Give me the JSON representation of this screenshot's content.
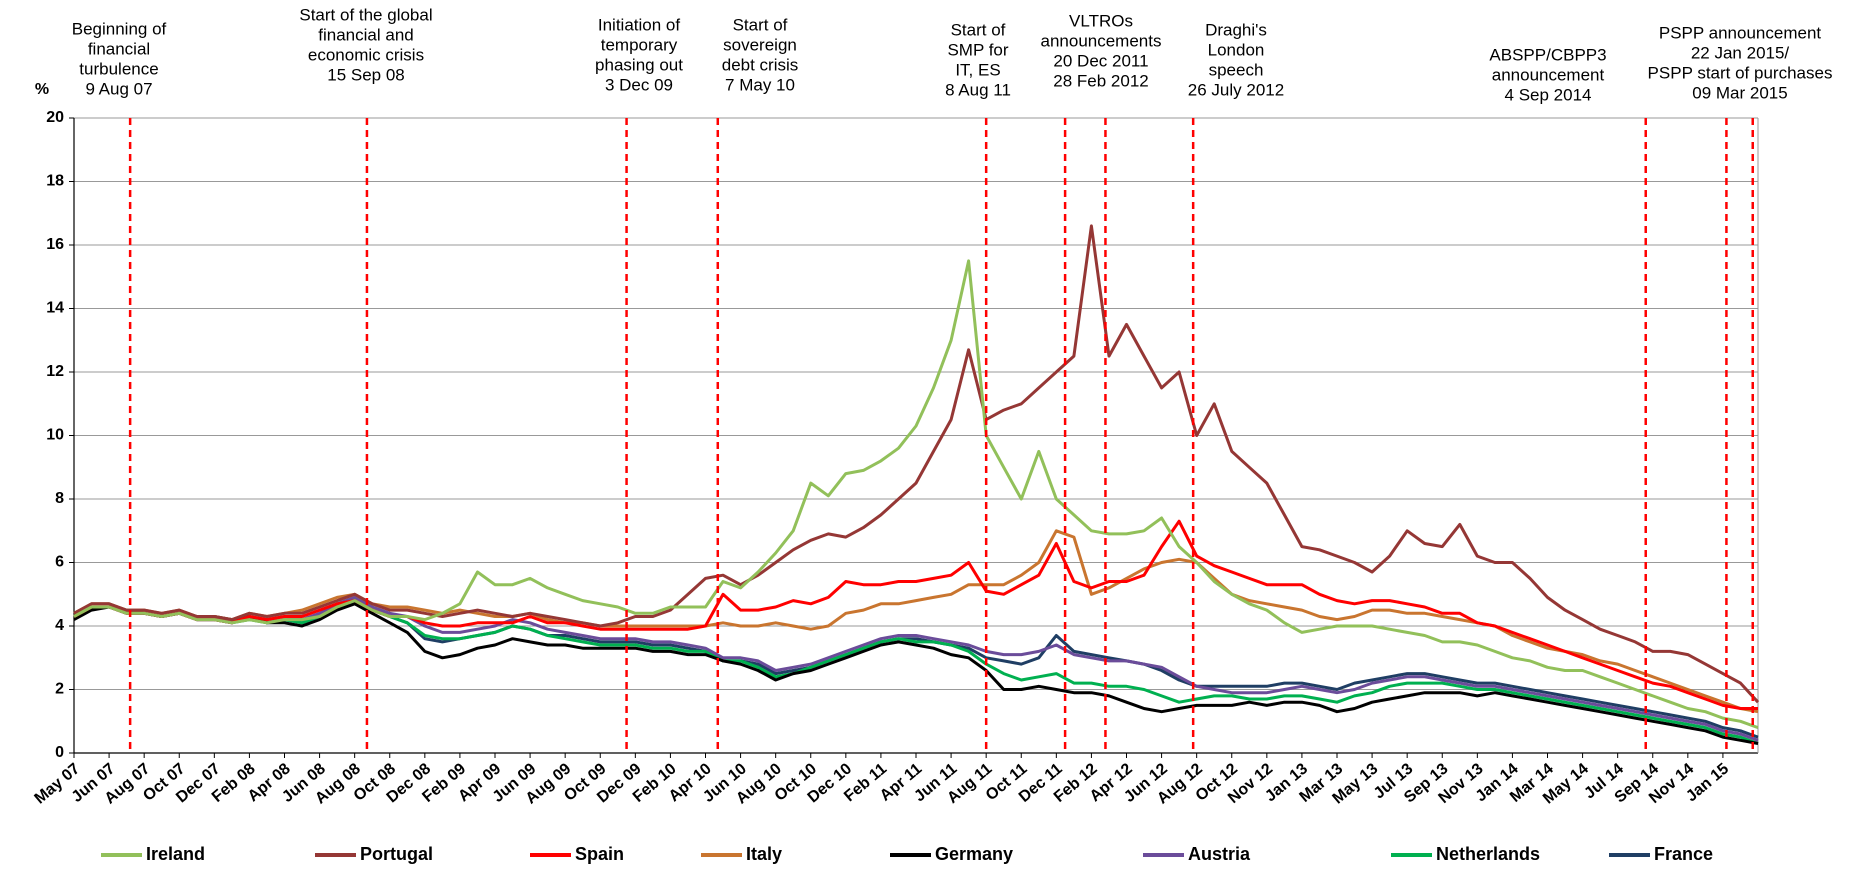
{
  "chart_data": {
    "type": "line",
    "y_label": "%",
    "categories": [
      "May 07",
      null,
      "Jun 07",
      null,
      "Aug 07",
      null,
      "Oct 07",
      null,
      "Dec 07",
      null,
      "Feb 08",
      null,
      "Apr 08",
      null,
      "Jun 08",
      null,
      "Aug 08",
      null,
      "Oct 08",
      null,
      "Dec 08",
      null,
      "Feb 09",
      null,
      "Apr 09",
      null,
      "Jun 09",
      null,
      "Aug 09",
      null,
      "Oct 09",
      null,
      "Dec 09",
      null,
      "Feb 10",
      null,
      "Apr 10",
      null,
      "Jun 10",
      null,
      "Aug 10",
      null,
      "Oct 10",
      null,
      "Dec 10",
      null,
      "Feb 11",
      null,
      "Apr 11",
      null,
      "Jun 11",
      null,
      "Aug 11",
      null,
      "Oct 11",
      null,
      "Dec 11",
      null,
      "Feb 12",
      null,
      "Apr 12",
      null,
      "Jun 12",
      null,
      "Aug 12",
      null,
      "Oct 12",
      null,
      "Nov 12",
      null,
      "Jan 13",
      null,
      "Mar 13",
      null,
      "May 13",
      null,
      "Jul 13",
      null,
      "Sep 13",
      null,
      "Nov 13",
      null,
      "Jan 14",
      null,
      "Mar 14",
      null,
      "May 14",
      null,
      "Jul 14",
      null,
      "Sep 14",
      null,
      "Nov 14",
      null,
      "Jan 15",
      null,
      null
    ],
    "ylim": [
      0,
      20
    ],
    "yticks": [
      0,
      2,
      4,
      6,
      8,
      10,
      12,
      14,
      16,
      18,
      20
    ],
    "grid": true,
    "series": [
      {
        "name": "Ireland",
        "color": "#92c05a",
        "values": [
          4.3,
          4.6,
          4.6,
          4.4,
          4.4,
          4.3,
          4.4,
          4.2,
          4.2,
          4.1,
          4.2,
          4.1,
          4.2,
          4.2,
          4.3,
          4.6,
          4.8,
          4.5,
          4.3,
          4.3,
          4.2,
          4.4,
          4.7,
          5.7,
          5.3,
          5.3,
          5.5,
          5.2,
          5.0,
          4.8,
          4.7,
          4.6,
          4.4,
          4.4,
          4.6,
          4.6,
          4.6,
          5.4,
          5.2,
          5.7,
          6.3,
          7.0,
          8.5,
          8.1,
          8.8,
          8.9,
          9.2,
          9.6,
          10.3,
          11.5,
          13.0,
          15.5,
          10.0,
          9.0,
          8.0,
          9.5,
          8.0,
          7.5,
          7.0,
          6.9,
          6.9,
          7.0,
          7.4,
          6.5,
          6.0,
          5.4,
          5.0,
          4.7,
          4.5,
          4.1,
          3.8,
          3.9,
          4.0,
          4.0,
          4.0,
          3.9,
          3.8,
          3.7,
          3.5,
          3.5,
          3.4,
          3.2,
          3.0,
          2.9,
          2.7,
          2.6,
          2.6,
          2.4,
          2.2,
          2.0,
          1.8,
          1.6,
          1.4,
          1.3,
          1.1,
          1.0,
          0.8
        ]
      },
      {
        "name": "Portugal",
        "color": "#953735",
        "values": [
          4.4,
          4.7,
          4.7,
          4.5,
          4.5,
          4.4,
          4.5,
          4.3,
          4.3,
          4.2,
          4.4,
          4.3,
          4.4,
          4.4,
          4.6,
          4.8,
          5.0,
          4.7,
          4.5,
          4.5,
          4.4,
          4.3,
          4.4,
          4.5,
          4.4,
          4.3,
          4.4,
          4.3,
          4.2,
          4.1,
          4.0,
          4.1,
          4.3,
          4.3,
          4.5,
          5.0,
          5.5,
          5.6,
          5.3,
          5.6,
          6.0,
          6.4,
          6.7,
          6.9,
          6.8,
          7.1,
          7.5,
          8.0,
          8.5,
          9.5,
          10.5,
          12.7,
          10.5,
          10.8,
          11.0,
          11.5,
          12.0,
          12.5,
          16.6,
          12.5,
          13.5,
          12.5,
          11.5,
          12.0,
          10.0,
          11.0,
          9.5,
          9.0,
          8.5,
          7.5,
          6.5,
          6.4,
          6.2,
          6.0,
          5.7,
          6.2,
          7.0,
          6.6,
          6.5,
          7.2,
          6.2,
          6.0,
          6.0,
          5.5,
          4.9,
          4.5,
          4.2,
          3.9,
          3.7,
          3.5,
          3.2,
          3.2,
          3.1,
          2.8,
          2.5,
          2.2,
          1.6
        ]
      },
      {
        "name": "Spain",
        "color": "#ff0000",
        "values": [
          4.3,
          4.6,
          4.6,
          4.4,
          4.4,
          4.3,
          4.4,
          4.2,
          4.2,
          4.1,
          4.3,
          4.2,
          4.3,
          4.3,
          4.5,
          4.7,
          4.8,
          4.5,
          4.3,
          4.3,
          4.1,
          4.0,
          4.0,
          4.1,
          4.1,
          4.1,
          4.3,
          4.1,
          4.1,
          4.0,
          3.9,
          3.9,
          3.9,
          3.9,
          3.9,
          3.9,
          4.0,
          5.0,
          4.5,
          4.5,
          4.6,
          4.8,
          4.7,
          4.9,
          5.4,
          5.3,
          5.3,
          5.4,
          5.4,
          5.5,
          5.6,
          6.0,
          5.1,
          5.0,
          5.3,
          5.6,
          6.6,
          5.4,
          5.2,
          5.4,
          5.4,
          5.6,
          6.5,
          7.3,
          6.2,
          5.9,
          5.7,
          5.5,
          5.3,
          5.3,
          5.3,
          5.0,
          4.8,
          4.7,
          4.8,
          4.8,
          4.7,
          4.6,
          4.4,
          4.4,
          4.1,
          4.0,
          3.8,
          3.6,
          3.4,
          3.2,
          3.0,
          2.8,
          2.6,
          2.4,
          2.2,
          2.1,
          1.9,
          1.7,
          1.5,
          1.4,
          1.4
        ]
      },
      {
        "name": "Italy",
        "color": "#c9752f",
        "values": [
          4.4,
          4.7,
          4.7,
          4.5,
          4.5,
          4.4,
          4.5,
          4.3,
          4.3,
          4.2,
          4.4,
          4.3,
          4.4,
          4.5,
          4.7,
          4.9,
          5.0,
          4.7,
          4.6,
          4.6,
          4.5,
          4.4,
          4.5,
          4.4,
          4.3,
          4.3,
          4.4,
          4.2,
          4.1,
          4.1,
          4.0,
          4.0,
          4.0,
          4.0,
          4.0,
          4.0,
          4.0,
          4.1,
          4.0,
          4.0,
          4.1,
          4.0,
          3.9,
          4.0,
          4.4,
          4.5,
          4.7,
          4.7,
          4.8,
          4.9,
          5.0,
          5.3,
          5.3,
          5.3,
          5.6,
          6.0,
          7.0,
          6.8,
          5.0,
          5.2,
          5.5,
          5.8,
          6.0,
          6.1,
          6.0,
          5.5,
          5.0,
          4.8,
          4.7,
          4.6,
          4.5,
          4.3,
          4.2,
          4.3,
          4.5,
          4.5,
          4.4,
          4.4,
          4.3,
          4.2,
          4.1,
          4.0,
          3.7,
          3.5,
          3.3,
          3.2,
          3.1,
          2.9,
          2.8,
          2.6,
          2.4,
          2.2,
          2.0,
          1.8,
          1.6,
          1.4,
          1.3
        ]
      },
      {
        "name": "Germany",
        "color": "#000000",
        "values": [
          4.2,
          4.5,
          4.6,
          4.5,
          4.4,
          4.3,
          4.4,
          4.3,
          4.3,
          4.2,
          4.3,
          4.1,
          4.1,
          4.0,
          4.2,
          4.5,
          4.7,
          4.4,
          4.1,
          3.8,
          3.2,
          3.0,
          3.1,
          3.3,
          3.4,
          3.6,
          3.5,
          3.4,
          3.4,
          3.3,
          3.3,
          3.3,
          3.3,
          3.2,
          3.2,
          3.1,
          3.1,
          2.9,
          2.8,
          2.6,
          2.3,
          2.5,
          2.6,
          2.8,
          3.0,
          3.2,
          3.4,
          3.5,
          3.4,
          3.3,
          3.1,
          3.0,
          2.6,
          2.0,
          2.0,
          2.1,
          2.0,
          1.9,
          1.9,
          1.8,
          1.6,
          1.4,
          1.3,
          1.4,
          1.5,
          1.5,
          1.5,
          1.6,
          1.5,
          1.6,
          1.6,
          1.5,
          1.3,
          1.4,
          1.6,
          1.7,
          1.8,
          1.9,
          1.9,
          1.9,
          1.8,
          1.9,
          1.8,
          1.7,
          1.6,
          1.5,
          1.4,
          1.3,
          1.2,
          1.1,
          1.0,
          0.9,
          0.8,
          0.7,
          0.5,
          0.4,
          0.3
        ]
      },
      {
        "name": "Austria",
        "color": "#6b4c9a",
        "values": [
          4.3,
          4.6,
          4.6,
          4.4,
          4.4,
          4.3,
          4.4,
          4.2,
          4.2,
          4.1,
          4.3,
          4.2,
          4.3,
          4.2,
          4.4,
          4.7,
          4.9,
          4.6,
          4.4,
          4.3,
          4.0,
          3.8,
          3.8,
          3.9,
          4.0,
          4.2,
          4.1,
          3.9,
          3.8,
          3.7,
          3.6,
          3.6,
          3.6,
          3.5,
          3.5,
          3.4,
          3.3,
          3.0,
          3.0,
          2.9,
          2.6,
          2.7,
          2.8,
          3.0,
          3.2,
          3.4,
          3.6,
          3.7,
          3.7,
          3.6,
          3.5,
          3.4,
          3.2,
          3.1,
          3.1,
          3.2,
          3.4,
          3.1,
          3.0,
          2.9,
          2.9,
          2.8,
          2.7,
          2.4,
          2.1,
          2.0,
          1.9,
          1.9,
          1.9,
          2.0,
          2.1,
          2.0,
          1.9,
          2.0,
          2.2,
          2.3,
          2.4,
          2.4,
          2.3,
          2.2,
          2.1,
          2.1,
          2.0,
          1.9,
          1.8,
          1.7,
          1.6,
          1.5,
          1.4,
          1.3,
          1.2,
          1.1,
          1.0,
          0.9,
          0.7,
          0.6,
          0.4
        ]
      },
      {
        "name": "Netherlands",
        "color": "#00b050",
        "values": [
          4.3,
          4.6,
          4.6,
          4.4,
          4.4,
          4.3,
          4.4,
          4.2,
          4.2,
          4.1,
          4.2,
          4.1,
          4.2,
          4.1,
          4.3,
          4.6,
          4.8,
          4.5,
          4.3,
          4.1,
          3.7,
          3.6,
          3.6,
          3.7,
          3.8,
          4.0,
          3.9,
          3.7,
          3.6,
          3.5,
          3.4,
          3.4,
          3.4,
          3.3,
          3.3,
          3.2,
          3.2,
          2.9,
          2.9,
          2.7,
          2.4,
          2.5,
          2.7,
          2.9,
          3.1,
          3.3,
          3.5,
          3.6,
          3.5,
          3.5,
          3.4,
          3.2,
          2.8,
          2.5,
          2.3,
          2.4,
          2.5,
          2.2,
          2.2,
          2.1,
          2.1,
          2.0,
          1.8,
          1.6,
          1.7,
          1.8,
          1.8,
          1.7,
          1.7,
          1.8,
          1.8,
          1.7,
          1.6,
          1.8,
          1.9,
          2.1,
          2.2,
          2.2,
          2.2,
          2.1,
          2.0,
          2.0,
          1.9,
          1.8,
          1.7,
          1.6,
          1.5,
          1.4,
          1.3,
          1.2,
          1.1,
          1.0,
          0.9,
          0.8,
          0.6,
          0.5,
          0.3
        ]
      },
      {
        "name": "France",
        "color": "#1f3e64",
        "values": [
          4.3,
          4.6,
          4.6,
          4.4,
          4.4,
          4.3,
          4.4,
          4.2,
          4.2,
          4.1,
          4.3,
          4.1,
          4.2,
          4.1,
          4.3,
          4.6,
          4.8,
          4.5,
          4.3,
          4.1,
          3.6,
          3.5,
          3.6,
          3.7,
          3.8,
          4.0,
          3.9,
          3.7,
          3.7,
          3.6,
          3.5,
          3.5,
          3.5,
          3.4,
          3.4,
          3.3,
          3.2,
          2.9,
          2.9,
          2.8,
          2.5,
          2.6,
          2.7,
          2.9,
          3.1,
          3.3,
          3.5,
          3.6,
          3.6,
          3.5,
          3.4,
          3.3,
          3.0,
          2.9,
          2.8,
          3.0,
          3.7,
          3.2,
          3.1,
          3.0,
          2.9,
          2.8,
          2.6,
          2.3,
          2.1,
          2.1,
          2.1,
          2.1,
          2.1,
          2.2,
          2.2,
          2.1,
          2.0,
          2.2,
          2.3,
          2.4,
          2.5,
          2.5,
          2.4,
          2.3,
          2.2,
          2.2,
          2.1,
          2.0,
          1.9,
          1.8,
          1.7,
          1.6,
          1.5,
          1.4,
          1.3,
          1.2,
          1.1,
          1.0,
          0.8,
          0.7,
          0.5
        ]
      }
    ],
    "annotations": [
      {
        "lines": [
          "Beginning of",
          "financial",
          "turbulence",
          "9 Aug 07"
        ],
        "x": [
          3.2
        ]
      },
      {
        "lines": [
          "Start of the global",
          "financial and",
          "economic  crisis",
          "15 Sep 08"
        ],
        "x": [
          16.7
        ]
      },
      {
        "lines": [
          "Initiation of",
          "temporary",
          "phasing out",
          "3 Dec 09"
        ],
        "x": [
          31.5
        ]
      },
      {
        "lines": [
          "Start of",
          "sovereign",
          "debt crisis",
          "7 May  10"
        ],
        "x": [
          36.7
        ]
      },
      {
        "lines": [
          "Start of",
          "SMP for",
          "IT, ES",
          "8 Aug 11"
        ],
        "x": [
          52.0
        ]
      },
      {
        "lines": [
          "VLTROs",
          "announcements",
          "20  Dec 2011",
          "28  Feb 2012"
        ],
        "x": [
          56.5,
          58.8
        ]
      },
      {
        "lines": [
          "Draghi's",
          "London",
          "speech",
          "26  July 2012"
        ],
        "x": [
          63.8
        ]
      },
      {
        "lines": [
          "ABSPP/CBPP3",
          "announcement",
          "4 Sep 2014"
        ],
        "x": [
          89.6
        ]
      },
      {
        "lines": [
          "PSPP announcement",
          "22 Jan 2015/",
          "PSPP start of purchases",
          "09 Mar 2015"
        ],
        "x": [
          94.2,
          95.7
        ]
      }
    ]
  }
}
